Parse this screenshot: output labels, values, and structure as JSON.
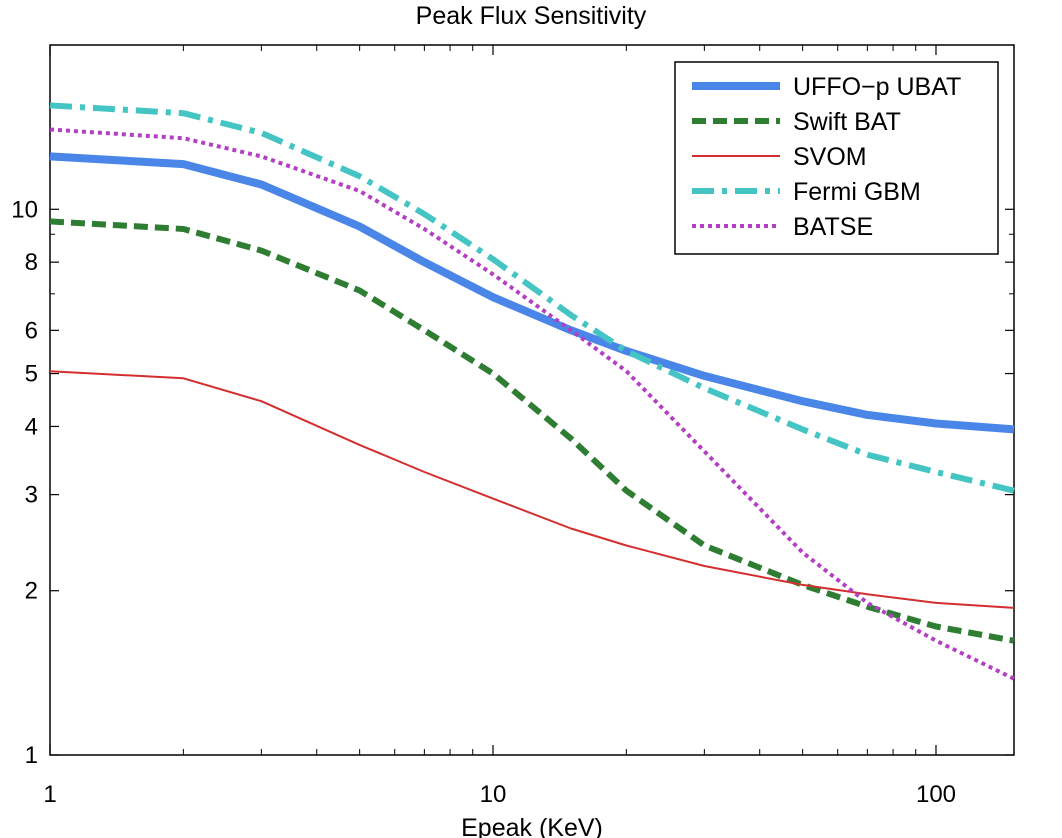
{
  "chart_data": {
    "type": "line",
    "title": "Peak Flux Sensitivity",
    "xlabel": "Epeak (KeV)",
    "ylabel": "",
    "xscale": "log",
    "yscale": "log",
    "xlim": [
      1,
      150
    ],
    "ylim": [
      1,
      20
    ],
    "x_ticks": [
      1,
      10,
      100
    ],
    "x_tick_labels": [
      "1",
      "10",
      "100"
    ],
    "y_ticks": [
      1,
      2,
      3,
      4,
      5,
      6,
      8,
      10
    ],
    "y_tick_labels": [
      "1",
      "2",
      "3",
      "4",
      "5",
      "6",
      "8",
      "10"
    ],
    "grid": false,
    "legend_position": "top-right",
    "series": [
      {
        "name": "UFFO−p UBAT",
        "color": "#4a86e8",
        "style": "solid-thick",
        "x": [
          1,
          2,
          3,
          5,
          7,
          10,
          15,
          20,
          30,
          50,
          70,
          100,
          150
        ],
        "y": [
          12.5,
          12.1,
          11.1,
          9.3,
          8.0,
          6.9,
          6.0,
          5.5,
          4.95,
          4.45,
          4.2,
          4.05,
          3.95
        ]
      },
      {
        "name": "Swift BAT",
        "color": "#2e7d32",
        "style": "dashed",
        "x": [
          1,
          2,
          3,
          5,
          7,
          10,
          15,
          20,
          30,
          50,
          70,
          100,
          150
        ],
        "y": [
          9.5,
          9.2,
          8.4,
          7.1,
          6.0,
          5.0,
          3.8,
          3.05,
          2.42,
          2.05,
          1.87,
          1.72,
          1.62
        ]
      },
      {
        "name": "SVOM",
        "color": "#d32f2f",
        "style": "solid-thin",
        "x": [
          1,
          2,
          3,
          5,
          7,
          10,
          15,
          20,
          30,
          50,
          70,
          100,
          150
        ],
        "y": [
          5.05,
          4.9,
          4.45,
          3.7,
          3.3,
          2.95,
          2.6,
          2.42,
          2.22,
          2.05,
          1.97,
          1.9,
          1.86
        ]
      },
      {
        "name": "Fermi GBM",
        "color": "#45c4c4",
        "style": "dash-dot",
        "x": [
          1,
          2,
          3,
          5,
          7,
          10,
          15,
          20,
          30,
          50,
          70,
          100,
          150
        ],
        "y": [
          15.5,
          15.0,
          13.8,
          11.5,
          9.8,
          8.1,
          6.4,
          5.5,
          4.7,
          3.95,
          3.55,
          3.3,
          3.05
        ]
      },
      {
        "name": "BATSE",
        "color": "#b43fc4",
        "style": "dotted",
        "x": [
          1,
          2,
          3,
          5,
          7,
          10,
          15,
          20,
          30,
          50,
          70,
          100,
          150
        ],
        "y": [
          14.0,
          13.5,
          12.5,
          10.8,
          9.2,
          7.6,
          6.0,
          5.05,
          3.6,
          2.35,
          1.9,
          1.62,
          1.38
        ]
      }
    ]
  }
}
